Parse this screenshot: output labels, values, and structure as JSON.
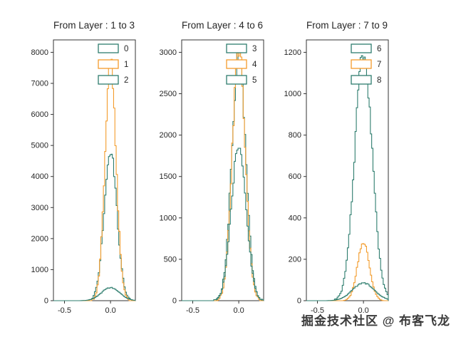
{
  "watermark": "掘金技术社区 @ 布客飞龙",
  "colors": {
    "teal": "#2e7d6e",
    "orange": "#f39c2c",
    "spine": "#333333",
    "text": "#262626"
  },
  "chart_data": [
    {
      "type": "histogram",
      "title": "From Layer : 1 to 3",
      "xlabel": "",
      "ylabel": "",
      "xlim": [
        -0.62,
        0.27
      ],
      "ylim": [
        0,
        8400
      ],
      "xticks": [
        -0.5,
        0.0
      ],
      "yticks": [
        0,
        1000,
        2000,
        3000,
        4000,
        5000,
        6000,
        7000,
        8000
      ],
      "grid": false,
      "legend_position": "upper right",
      "series": [
        {
          "name": "0",
          "color": "#2e7d6e",
          "peak": 4800,
          "mean": 0.0,
          "std": 0.07
        },
        {
          "name": "1",
          "color": "#f39c2c",
          "peak": 7700,
          "mean": 0.0,
          "std": 0.06
        },
        {
          "name": "2",
          "color": "#2e7d6e",
          "peak": 420,
          "mean": 0.0,
          "std": 0.1
        }
      ]
    },
    {
      "type": "histogram",
      "title": "From Layer : 4 to 6",
      "xlabel": "",
      "ylabel": "",
      "xlim": [
        -0.62,
        0.27
      ],
      "ylim": [
        0,
        3150
      ],
      "xticks": [
        -0.5,
        0.0
      ],
      "yticks": [
        0,
        500,
        1000,
        1500,
        2000,
        2500,
        3000
      ],
      "grid": false,
      "legend_position": "upper right",
      "series": [
        {
          "name": "3",
          "color": "#2e7d6e",
          "peak": 2950,
          "mean": 0.0,
          "std": 0.075
        },
        {
          "name": "4",
          "color": "#f39c2c",
          "peak": 3050,
          "mean": 0.0,
          "std": 0.07
        },
        {
          "name": "5",
          "color": "#2e7d6e",
          "peak": 1900,
          "mean": 0.0,
          "std": 0.08
        }
      ]
    },
    {
      "type": "histogram",
      "title": "From Layer : 7 to 9",
      "xlabel": "",
      "ylabel": "",
      "xlim": [
        -0.62,
        0.27
      ],
      "ylim": [
        0,
        1260
      ],
      "xticks": [
        -0.5,
        0.0
      ],
      "yticks": [
        0,
        200,
        400,
        600,
        800,
        1000,
        1200
      ],
      "grid": false,
      "legend_position": "upper right",
      "series": [
        {
          "name": "6",
          "color": "#2e7d6e",
          "peak": 1190,
          "mean": 0.0,
          "std": 0.095
        },
        {
          "name": "7",
          "color": "#f39c2c",
          "peak": 280,
          "mean": 0.0,
          "std": 0.065
        },
        {
          "name": "8",
          "color": "#2e7d6e",
          "peak": 85,
          "mean": 0.0,
          "std": 0.12
        }
      ]
    }
  ]
}
